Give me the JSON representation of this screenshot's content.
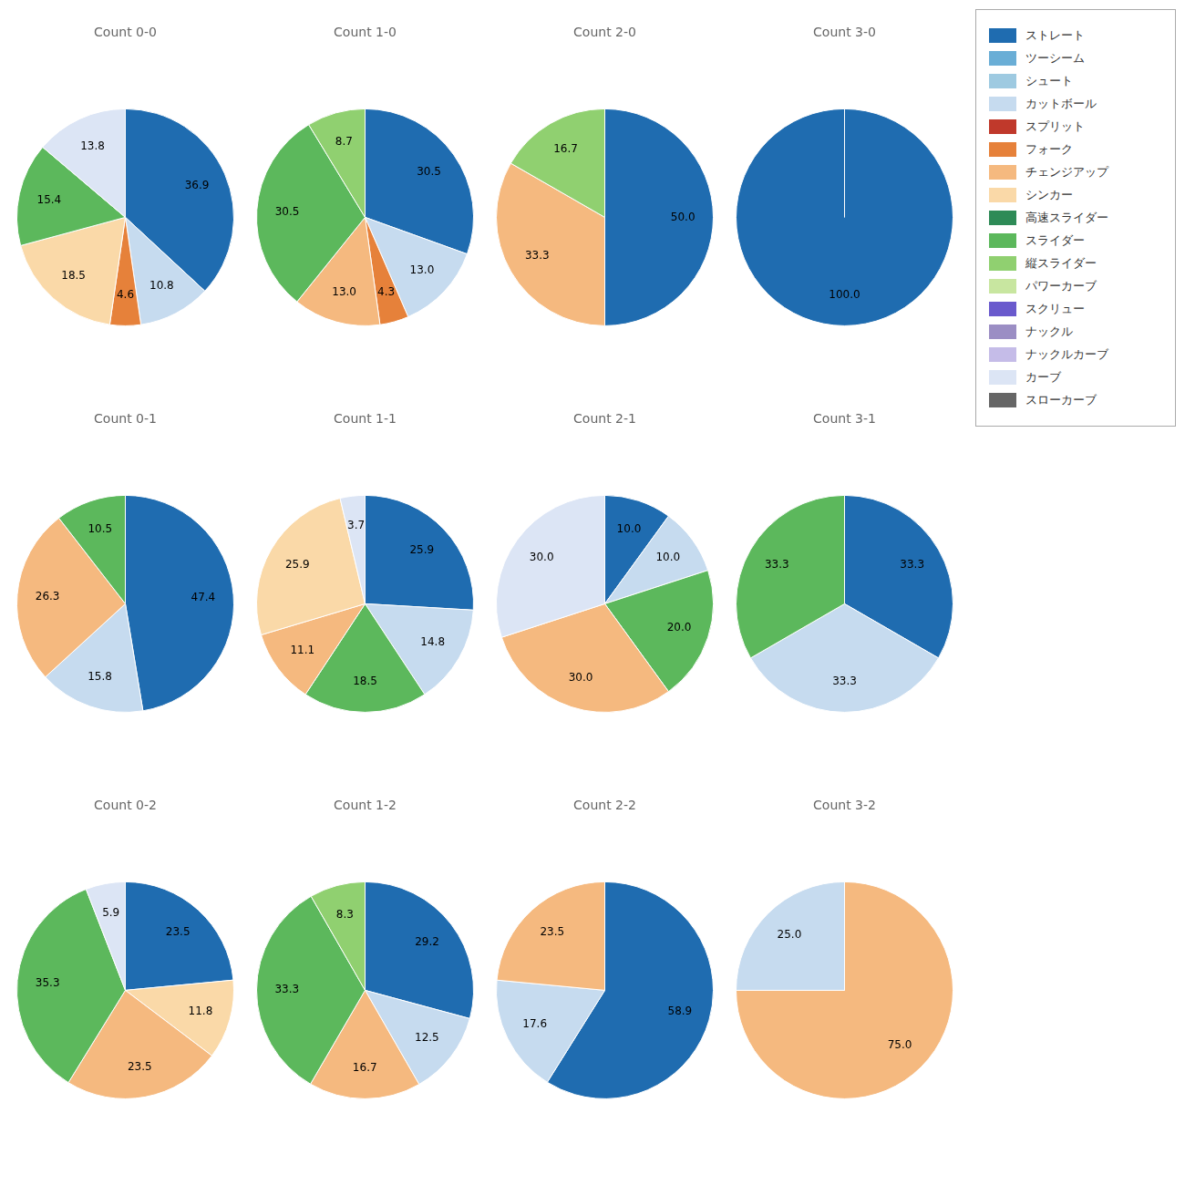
{
  "chart_data": [
    {
      "type": "pie",
      "title": "Count 0-0",
      "categories": [
        "ストレート",
        "カットボール",
        "フォーク",
        "シンカー",
        "スライダー",
        "カーブ"
      ],
      "values": [
        36.9,
        10.8,
        4.6,
        18.5,
        15.4,
        13.8
      ],
      "value_labels": [
        "36.9",
        "10.8",
        "4.6",
        "18.5",
        "15.4",
        "13.8"
      ],
      "colors": [
        "#1f6cb0",
        "#c6dbef",
        "#e6813a",
        "#fad9a8",
        "#5cb85c",
        "#dce5f5"
      ],
      "data_labels": true
    },
    {
      "type": "pie",
      "title": "Count 1-0",
      "categories": [
        "ストレート",
        "カットボール",
        "フォーク",
        "チェンジアップ",
        "スライダー",
        "縦スライダー"
      ],
      "values": [
        30.5,
        13.0,
        4.3,
        13.0,
        30.5,
        8.7
      ],
      "value_labels": [
        "30.5",
        "13.0",
        "4.3",
        "13.0",
        "30.5",
        "8.7"
      ],
      "colors": [
        "#1f6cb0",
        "#c6dbef",
        "#e6813a",
        "#f5b97f",
        "#5cb85c",
        "#90d070"
      ],
      "data_labels": true
    },
    {
      "type": "pie",
      "title": "Count 2-0",
      "categories": [
        "ストレート",
        "チェンジアップ",
        "縦スライダー"
      ],
      "values": [
        50.0,
        33.3,
        16.7
      ],
      "value_labels": [
        "50.0",
        "33.3",
        "16.7"
      ],
      "colors": [
        "#1f6cb0",
        "#f5b97f",
        "#90d070"
      ],
      "data_labels": true
    },
    {
      "type": "pie",
      "title": "Count 3-0",
      "categories": [
        "ストレート"
      ],
      "values": [
        100.0
      ],
      "value_labels": [
        "100.0"
      ],
      "colors": [
        "#1f6cb0"
      ],
      "data_labels": true
    },
    {
      "type": "pie",
      "title": "Count 0-1",
      "categories": [
        "ストレート",
        "カットボール",
        "チェンジアップ",
        "スライダー"
      ],
      "values": [
        47.4,
        15.8,
        26.3,
        10.5
      ],
      "value_labels": [
        "47.4",
        "15.8",
        "26.3",
        "10.5"
      ],
      "colors": [
        "#1f6cb0",
        "#c6dbef",
        "#f5b97f",
        "#5cb85c"
      ],
      "data_labels": true
    },
    {
      "type": "pie",
      "title": "Count 1-1",
      "categories": [
        "ストレート",
        "カットボール",
        "スライダー",
        "チェンジアップ",
        "シンカー",
        "カーブ"
      ],
      "values": [
        25.9,
        14.8,
        18.5,
        11.1,
        25.9,
        3.7
      ],
      "value_labels": [
        "25.9",
        "14.8",
        "18.5",
        "11.1",
        "25.9",
        "3.7"
      ],
      "colors": [
        "#1f6cb0",
        "#c6dbef",
        "#5cb85c",
        "#f5b97f",
        "#fad9a8",
        "#dce5f5"
      ],
      "data_labels": true
    },
    {
      "type": "pie",
      "title": "Count 2-1",
      "categories": [
        "ストレート",
        "カットボール",
        "スライダー",
        "チェンジアップ",
        "カーブ"
      ],
      "values": [
        10.0,
        10.0,
        20.0,
        30.0,
        30.0
      ],
      "value_labels": [
        "10.0",
        "10.0",
        "20.0",
        "30.0",
        "30.0"
      ],
      "colors": [
        "#1f6cb0",
        "#c6dbef",
        "#5cb85c",
        "#f5b97f",
        "#dce5f5"
      ],
      "data_labels": true
    },
    {
      "type": "pie",
      "title": "Count 3-1",
      "categories": [
        "ストレート",
        "カットボール",
        "スライダー"
      ],
      "values": [
        33.3,
        33.3,
        33.3
      ],
      "value_labels": [
        "33.3",
        "33.3",
        "33.3"
      ],
      "colors": [
        "#1f6cb0",
        "#c6dbef",
        "#5cb85c"
      ],
      "data_labels": true
    },
    {
      "type": "pie",
      "title": "Count 0-2",
      "categories": [
        "ストレート",
        "シンカー",
        "チェンジアップ",
        "スライダー",
        "カーブ"
      ],
      "values": [
        23.5,
        11.8,
        23.5,
        35.3,
        5.9
      ],
      "value_labels": [
        "23.5",
        "11.8",
        "23.5",
        "35.3",
        "5.9"
      ],
      "colors": [
        "#1f6cb0",
        "#fad9a8",
        "#f5b97f",
        "#5cb85c",
        "#dce5f5"
      ],
      "data_labels": true
    },
    {
      "type": "pie",
      "title": "Count 1-2",
      "categories": [
        "ストレート",
        "カットボール",
        "チェンジアップ",
        "スライダー",
        "縦スライダー"
      ],
      "values": [
        29.2,
        12.5,
        16.7,
        33.3,
        8.3
      ],
      "value_labels": [
        "29.2",
        "12.5",
        "16.7",
        "33.3",
        "8.3"
      ],
      "colors": [
        "#1f6cb0",
        "#c6dbef",
        "#f5b97f",
        "#5cb85c",
        "#90d070"
      ],
      "data_labels": true
    },
    {
      "type": "pie",
      "title": "Count 2-2",
      "categories": [
        "ストレート",
        "カットボール",
        "チェンジアップ"
      ],
      "values": [
        58.9,
        17.6,
        23.5
      ],
      "value_labels": [
        "58.9",
        "17.6",
        "23.5"
      ],
      "colors": [
        "#1f6cb0",
        "#c6dbef",
        "#f5b97f"
      ],
      "data_labels": true
    },
    {
      "type": "pie",
      "title": "Count 3-2",
      "categories": [
        "チェンジアップ",
        "カットボール"
      ],
      "values": [
        75.0,
        25.0
      ],
      "value_labels": [
        "75.0",
        "25.0"
      ],
      "colors": [
        "#f5b97f",
        "#c6dbef"
      ],
      "data_labels": true
    }
  ],
  "legend": "upper right",
  "categories": [
    "ストレート",
    "ツーシーム",
    "シュート",
    "カットボール",
    "スプリット",
    "フォーク",
    "チェンジアップ",
    "シンカー",
    "高速スライダー",
    "スライダー",
    "縦スライダー",
    "パワーカーブ",
    "スクリュー",
    "ナックル",
    "ナックルカーブ",
    "カーブ",
    "スローカーブ"
  ],
  "colors": [
    "#1f6cb0",
    "#6aaed6",
    "#9ecae1",
    "#c6dbef",
    "#c0392b",
    "#e6813a",
    "#f5b97f",
    "#fad9a8",
    "#2e8b57",
    "#5cb85c",
    "#90d070",
    "#c8e6a0",
    "#6a5acd",
    "#9b8ec4",
    "#c5bce8",
    "#dce5f5",
    "#666666"
  ]
}
